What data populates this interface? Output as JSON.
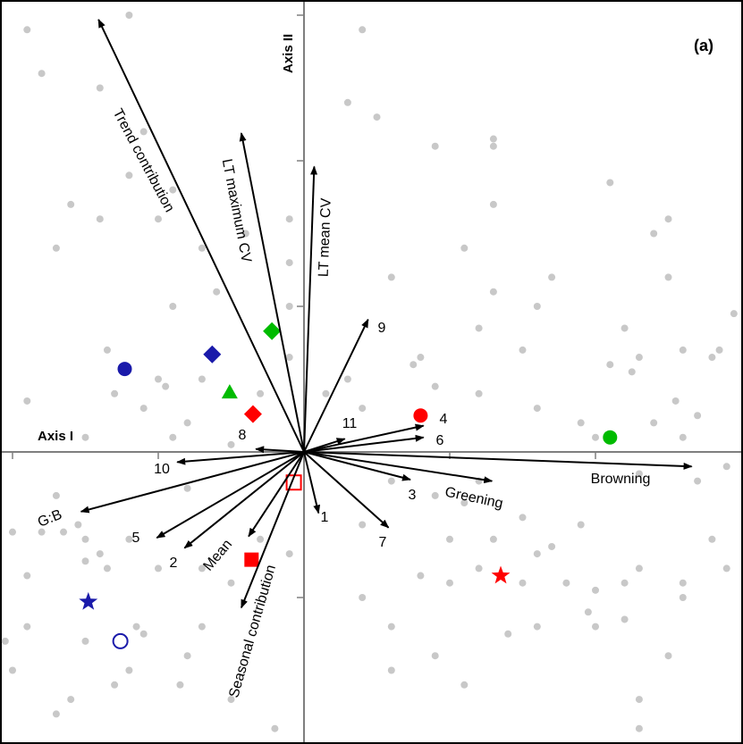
{
  "chart_data": {
    "type": "scatter",
    "panel_label": "(a)",
    "xlabel": "Axis I",
    "ylabel": "Axis II",
    "xlim": [
      -2.1,
      3.0
    ],
    "ylim": [
      -2.0,
      3.1
    ],
    "grid": false,
    "colors": {
      "frame": "#000000",
      "axes": "#7f7f7f",
      "arrows": "#000000",
      "background_points": "#c8c8c8",
      "red": "#ff0000",
      "green": "#00bb00",
      "blue": "#1a1aaa"
    },
    "background_points": [
      [
        -1.9,
        2.9
      ],
      [
        -1.2,
        3.0
      ],
      [
        0.4,
        2.9
      ],
      [
        -1.8,
        2.6
      ],
      [
        -1.4,
        2.5
      ],
      [
        -1.1,
        2.2
      ],
      [
        -1.2,
        1.9
      ],
      [
        -0.9,
        1.8
      ],
      [
        -1.6,
        1.7
      ],
      [
        -1.4,
        1.6
      ],
      [
        -1.0,
        1.6
      ],
      [
        -1.7,
        1.4
      ],
      [
        0.5,
        2.3
      ],
      [
        0.3,
        2.4
      ],
      [
        0.9,
        2.1
      ],
      [
        1.3,
        1.7
      ],
      [
        1.1,
        1.4
      ],
      [
        1.3,
        1.1
      ],
      [
        0.6,
        1.2
      ],
      [
        -0.1,
        1.6
      ],
      [
        -0.1,
        1.3
      ],
      [
        -0.1,
        1.0
      ],
      [
        -0.7,
        1.4
      ],
      [
        -0.4,
        1.5
      ],
      [
        -0.9,
        1.0
      ],
      [
        -0.6,
        1.1
      ],
      [
        -1.35,
        0.7
      ],
      [
        -1.0,
        0.5
      ],
      [
        -0.95,
        0.45
      ],
      [
        -1.3,
        0.4
      ],
      [
        -0.7,
        0.5
      ],
      [
        -0.3,
        0.4
      ],
      [
        -0.1,
        0.65
      ],
      [
        -1.1,
        0.3
      ],
      [
        -1.9,
        0.35
      ],
      [
        -1.5,
        0.1
      ],
      [
        -0.8,
        0.2
      ],
      [
        -0.9,
        0.1
      ],
      [
        -0.5,
        0.05
      ],
      [
        0.3,
        0.5
      ],
      [
        0.15,
        0.4
      ],
      [
        0.4,
        0.3
      ],
      [
        0.75,
        0.6
      ],
      [
        0.9,
        0.45
      ],
      [
        1.2,
        0.4
      ],
      [
        1.6,
        0.3
      ],
      [
        1.9,
        0.2
      ],
      [
        2.0,
        0.1
      ],
      [
        2.4,
        0.2
      ],
      [
        2.6,
        0.1
      ],
      [
        2.7,
        0.25
      ],
      [
        2.55,
        0.35
      ],
      [
        2.25,
        0.55
      ],
      [
        1.6,
        1.0
      ],
      [
        2.5,
        1.2
      ],
      [
        2.6,
        0.7
      ],
      [
        2.8,
        0.65
      ],
      [
        2.85,
        0.7
      ],
      [
        2.95,
        0.95
      ],
      [
        1.3,
        2.15
      ],
      [
        1.3,
        2.1
      ],
      [
        2.1,
        1.85
      ],
      [
        2.5,
        1.6
      ],
      [
        2.4,
        1.5
      ],
      [
        1.7,
        1.2
      ],
      [
        2.2,
        0.85
      ],
      [
        1.5,
        0.7
      ],
      [
        2.1,
        0.6
      ],
      [
        2.3,
        0.65
      ],
      [
        0.8,
        0.65
      ],
      [
        1.2,
        0.85
      ],
      [
        2.9,
        -0.1
      ],
      [
        2.7,
        -0.2
      ],
      [
        2.3,
        -0.15
      ],
      [
        1.5,
        -0.45
      ],
      [
        1.9,
        -0.5
      ],
      [
        1.7,
        -0.65
      ],
      [
        1.6,
        -0.7
      ],
      [
        2.3,
        -0.8
      ],
      [
        2.6,
        -0.9
      ],
      [
        2.8,
        -0.6
      ],
      [
        2.9,
        -0.8
      ],
      [
        1.3,
        -0.6
      ],
      [
        1.2,
        -0.8
      ],
      [
        1.5,
        -0.9
      ],
      [
        1.8,
        -0.9
      ],
      [
        2.0,
        -0.95
      ],
      [
        2.2,
        -0.9
      ],
      [
        2.6,
        -1.0
      ],
      [
        1.95,
        -1.1
      ],
      [
        2.0,
        -1.2
      ],
      [
        2.2,
        -1.15
      ],
      [
        2.5,
        -1.4
      ],
      [
        2.3,
        -1.7
      ],
      [
        2.3,
        -1.9
      ],
      [
        1.1,
        -1.6
      ],
      [
        0.6,
        -1.5
      ],
      [
        0.6,
        -1.2
      ],
      [
        0.9,
        -1.4
      ],
      [
        0.4,
        -1.0
      ],
      [
        1.0,
        -0.9
      ],
      [
        0.8,
        -0.85
      ],
      [
        1.6,
        -1.2
      ],
      [
        1.4,
        -1.25
      ],
      [
        1.0,
        -0.6
      ],
      [
        0.4,
        -0.5
      ],
      [
        0.9,
        -0.3
      ],
      [
        1.1,
        -0.35
      ],
      [
        1.2,
        -0.2
      ],
      [
        0.6,
        -0.2
      ],
      [
        -0.1,
        -0.7
      ],
      [
        -0.3,
        -0.6
      ],
      [
        -0.8,
        -0.25
      ],
      [
        -1.2,
        -0.6
      ],
      [
        -1.7,
        -0.3
      ],
      [
        -1.55,
        -0.5
      ],
      [
        -1.65,
        -0.55
      ],
      [
        -1.5,
        -0.6
      ],
      [
        -1.8,
        -0.55
      ],
      [
        -1.5,
        -0.75
      ],
      [
        -1.9,
        -0.85
      ],
      [
        -2.0,
        -0.55
      ],
      [
        -1.35,
        -0.8
      ],
      [
        -1.4,
        -0.7
      ],
      [
        -1.0,
        -0.8
      ],
      [
        -0.7,
        -0.8
      ],
      [
        -0.5,
        -0.9
      ],
      [
        -1.15,
        -1.2
      ],
      [
        -1.1,
        -1.25
      ],
      [
        -1.5,
        -1.3
      ],
      [
        -1.9,
        -1.2
      ],
      [
        -2.05,
        -1.3
      ],
      [
        -1.3,
        -1.6
      ],
      [
        -1.6,
        -1.7
      ],
      [
        -0.8,
        -1.4
      ],
      [
        -0.85,
        -1.6
      ],
      [
        -2.0,
        -1.5
      ],
      [
        -1.7,
        -1.8
      ],
      [
        -0.5,
        -1.7
      ],
      [
        -0.2,
        -1.9
      ],
      [
        -0.7,
        -1.2
      ],
      [
        -1.2,
        -1.5
      ]
    ],
    "highlighted_points": [
      {
        "shape": "circle",
        "color": "red",
        "fill": "filled",
        "x": 0.8,
        "y": 0.25
      },
      {
        "shape": "circle",
        "color": "green",
        "fill": "filled",
        "x": 2.1,
        "y": 0.1
      },
      {
        "shape": "circle",
        "color": "blue",
        "fill": "filled",
        "x": -1.23,
        "y": 0.57
      },
      {
        "shape": "circle",
        "color": "blue",
        "fill": "open",
        "x": -1.26,
        "y": -1.3
      },
      {
        "shape": "diamond",
        "color": "blue",
        "fill": "filled",
        "x": -0.63,
        "y": 0.67
      },
      {
        "shape": "diamond",
        "color": "green",
        "fill": "filled",
        "x": -0.22,
        "y": 0.83
      },
      {
        "shape": "diamond",
        "color": "red",
        "fill": "filled",
        "x": -0.35,
        "y": 0.26
      },
      {
        "shape": "triangle",
        "color": "green",
        "fill": "filled",
        "x": -0.51,
        "y": 0.41
      },
      {
        "shape": "square",
        "color": "red",
        "fill": "filled",
        "x": -0.36,
        "y": -0.74
      },
      {
        "shape": "square",
        "color": "red",
        "fill": "open",
        "x": -0.07,
        "y": -0.21
      },
      {
        "shape": "star",
        "color": "red",
        "fill": "filled",
        "x": 1.35,
        "y": -0.85
      },
      {
        "shape": "star",
        "color": "blue",
        "fill": "filled",
        "x": -1.48,
        "y": -1.03
      }
    ],
    "vectors": [
      {
        "label": "Trend contribution",
        "x": -1.41,
        "y": 2.97
      },
      {
        "label": "LT maximum CV",
        "x": -0.43,
        "y": 2.19
      },
      {
        "label": "LT mean CV",
        "x": 0.07,
        "y": 1.96
      },
      {
        "label": "9",
        "x": 0.44,
        "y": 0.91
      },
      {
        "label": "11",
        "x": 0.28,
        "y": 0.09
      },
      {
        "label": "4",
        "x": 0.82,
        "y": 0.18
      },
      {
        "label": "6",
        "x": 0.82,
        "y": 0.1
      },
      {
        "label": "Browning",
        "x": 2.66,
        "y": -0.1
      },
      {
        "label": "Greening",
        "x": 1.29,
        "y": -0.2
      },
      {
        "label": "3",
        "x": 0.73,
        "y": -0.19
      },
      {
        "label": "7",
        "x": 0.58,
        "y": -0.52
      },
      {
        "label": "1",
        "x": 0.1,
        "y": -0.42
      },
      {
        "label": "Seasonal contribution",
        "x": -0.43,
        "y": -1.07
      },
      {
        "label": "Mean",
        "x": -0.38,
        "y": -0.58
      },
      {
        "label": "2",
        "x": -0.82,
        "y": -0.66
      },
      {
        "label": "5",
        "x": -1.01,
        "y": -0.59
      },
      {
        "label": "G:B",
        "x": -1.53,
        "y": -0.41
      },
      {
        "label": "10",
        "x": -0.87,
        "y": -0.07
      },
      {
        "label": "8",
        "x": -0.33,
        "y": 0.02
      }
    ]
  }
}
